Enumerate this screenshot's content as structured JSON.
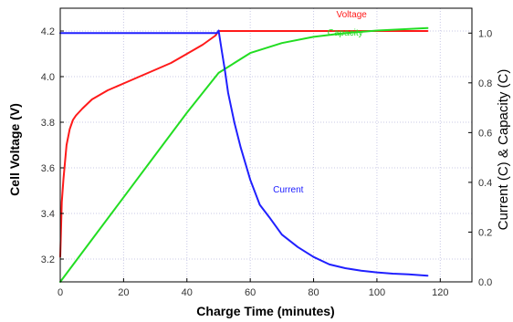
{
  "chart_data": {
    "type": "line",
    "xlabel": "Charge Time (minutes)",
    "ylabel_left": "Cell Voltage (V)",
    "ylabel_right": "Current (C) & Capacity (C)",
    "xlim": [
      0,
      130
    ],
    "ylim_left": [
      3.1,
      4.3
    ],
    "ylim_right": [
      0.0,
      1.1
    ],
    "x_ticks": [
      0,
      20,
      40,
      60,
      80,
      100,
      120
    ],
    "y_left_ticks": [
      3.2,
      3.4,
      3.6,
      3.8,
      4.0,
      4.2
    ],
    "y_right_ticks": [
      0.0,
      0.2,
      0.4,
      0.6,
      0.8,
      1.0
    ],
    "grid": true,
    "series": [
      {
        "name": "Voltage",
        "axis": "left",
        "color": "#ff1a1a",
        "x": [
          0,
          0.5,
          1,
          2,
          3,
          4,
          5,
          7,
          10,
          15,
          20,
          25,
          30,
          35,
          40,
          45,
          49,
          50,
          55,
          60,
          80,
          100,
          116
        ],
        "y": [
          3.21,
          3.45,
          3.55,
          3.7,
          3.77,
          3.81,
          3.83,
          3.86,
          3.9,
          3.94,
          3.97,
          4.0,
          4.03,
          4.06,
          4.1,
          4.14,
          4.18,
          4.2,
          4.2,
          4.2,
          4.2,
          4.2,
          4.2
        ]
      },
      {
        "name": "Capacity",
        "axis": "right",
        "color": "#22dd22",
        "x": [
          0,
          10,
          20,
          30,
          40,
          50,
          55,
          60,
          70,
          80,
          90,
          100,
          116
        ],
        "y": [
          0.0,
          0.17,
          0.34,
          0.51,
          0.68,
          0.84,
          0.88,
          0.92,
          0.96,
          0.985,
          1.0,
          1.01,
          1.02
        ]
      },
      {
        "name": "Current",
        "axis": "right",
        "color": "#2020ff",
        "x": [
          0,
          49.5,
          50,
          51,
          52,
          53,
          55,
          57,
          60,
          63,
          66,
          70,
          75,
          80,
          85,
          90,
          95,
          100,
          105,
          110,
          116
        ],
        "y": [
          1.0,
          1.0,
          1.01,
          0.93,
          0.85,
          0.76,
          0.64,
          0.54,
          0.41,
          0.31,
          0.26,
          0.19,
          0.14,
          0.1,
          0.07,
          0.055,
          0.045,
          0.038,
          0.033,
          0.03,
          0.025
        ]
      }
    ]
  }
}
